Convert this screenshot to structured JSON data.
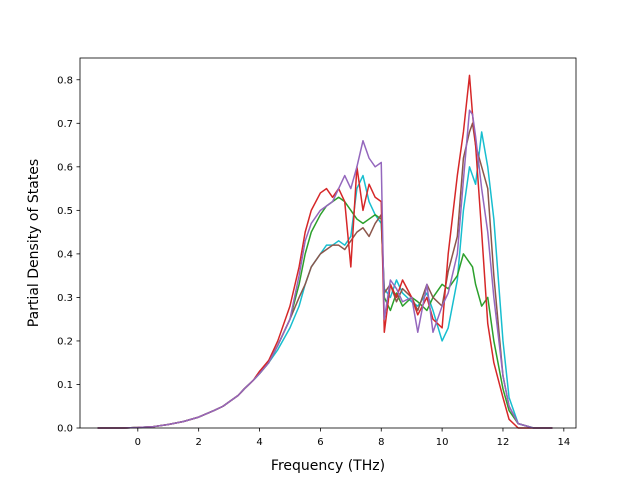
{
  "chart_data": {
    "type": "line",
    "title": "",
    "xlabel": "Frequency (THz)",
    "ylabel": "Partial Density of States",
    "xlim": [
      -1.9,
      14.4
    ],
    "ylim": [
      0.0,
      0.85
    ],
    "x_ticks": [
      0,
      2,
      4,
      6,
      8,
      10,
      12,
      14
    ],
    "x_tick_labels": [
      "0",
      "2",
      "4",
      "6",
      "8",
      "10",
      "12",
      "14"
    ],
    "y_ticks": [
      0.0,
      0.1,
      0.2,
      0.3,
      0.4,
      0.5,
      0.6,
      0.7,
      0.8
    ],
    "y_tick_labels": [
      "0.0",
      "0.1",
      "0.2",
      "0.3",
      "0.4",
      "0.5",
      "0.6",
      "0.7",
      "0.8"
    ],
    "grid": false,
    "legend": false,
    "series": [
      {
        "color": "#17becf",
        "x": [
          -1.3,
          -0.5,
          0.0,
          0.5,
          1.0,
          1.5,
          2.0,
          2.5,
          2.8,
          3.0,
          3.3,
          3.5,
          3.8,
          4.0,
          4.3,
          4.6,
          5.0,
          5.3,
          5.5,
          5.7,
          6.0,
          6.2,
          6.4,
          6.6,
          6.8,
          7.0,
          7.2,
          7.4,
          7.6,
          7.8,
          8.0,
          8.1,
          8.3,
          8.5,
          8.7,
          9.0,
          9.2,
          9.5,
          9.7,
          10.0,
          10.2,
          10.5,
          10.7,
          10.9,
          11.0,
          11.1,
          11.3,
          11.5,
          11.7,
          12.0,
          12.2,
          12.5,
          13.0,
          13.6
        ],
        "y": [
          0.0,
          0.0,
          0.001,
          0.003,
          0.008,
          0.015,
          0.025,
          0.04,
          0.05,
          0.06,
          0.075,
          0.09,
          0.11,
          0.125,
          0.15,
          0.18,
          0.23,
          0.28,
          0.33,
          0.37,
          0.4,
          0.42,
          0.42,
          0.43,
          0.42,
          0.44,
          0.55,
          0.58,
          0.52,
          0.49,
          0.47,
          0.32,
          0.3,
          0.34,
          0.31,
          0.29,
          0.28,
          0.31,
          0.27,
          0.2,
          0.23,
          0.34,
          0.5,
          0.6,
          0.58,
          0.56,
          0.68,
          0.6,
          0.48,
          0.2,
          0.07,
          0.01,
          0.0,
          0.0
        ]
      },
      {
        "color": "#2ca02c",
        "x": [
          -1.3,
          -0.5,
          0.0,
          0.5,
          1.0,
          1.5,
          2.0,
          2.5,
          2.8,
          3.0,
          3.3,
          3.5,
          3.8,
          4.0,
          4.3,
          4.6,
          5.0,
          5.3,
          5.5,
          5.7,
          6.0,
          6.2,
          6.4,
          6.6,
          6.8,
          7.0,
          7.2,
          7.4,
          7.6,
          7.8,
          8.0,
          8.1,
          8.3,
          8.5,
          8.7,
          9.0,
          9.2,
          9.5,
          9.7,
          10.0,
          10.2,
          10.5,
          10.7,
          10.9,
          11.0,
          11.1,
          11.3,
          11.5,
          11.7,
          12.0,
          12.2,
          12.5,
          13.0,
          13.6
        ],
        "y": [
          0.0,
          0.0,
          0.001,
          0.003,
          0.008,
          0.015,
          0.025,
          0.04,
          0.05,
          0.06,
          0.075,
          0.09,
          0.11,
          0.125,
          0.15,
          0.19,
          0.25,
          0.33,
          0.4,
          0.45,
          0.49,
          0.51,
          0.52,
          0.53,
          0.52,
          0.5,
          0.48,
          0.47,
          0.48,
          0.49,
          0.48,
          0.3,
          0.27,
          0.31,
          0.28,
          0.3,
          0.29,
          0.27,
          0.3,
          0.33,
          0.32,
          0.35,
          0.4,
          0.38,
          0.37,
          0.33,
          0.28,
          0.3,
          0.2,
          0.09,
          0.04,
          0.01,
          0.0,
          0.0
        ]
      },
      {
        "color": "#8c564b",
        "x": [
          -1.3,
          -0.5,
          0.0,
          0.5,
          1.0,
          1.5,
          2.0,
          2.5,
          2.8,
          3.0,
          3.3,
          3.5,
          3.8,
          4.0,
          4.3,
          4.6,
          5.0,
          5.3,
          5.5,
          5.7,
          6.0,
          6.2,
          6.4,
          6.6,
          6.8,
          7.0,
          7.2,
          7.4,
          7.6,
          7.8,
          8.0,
          8.1,
          8.3,
          8.5,
          8.7,
          9.0,
          9.2,
          9.5,
          9.7,
          10.0,
          10.2,
          10.5,
          10.7,
          10.9,
          11.0,
          11.1,
          11.3,
          11.5,
          11.7,
          12.0,
          12.2,
          12.5,
          13.0,
          13.6
        ],
        "y": [
          0.0,
          0.0,
          0.001,
          0.003,
          0.008,
          0.015,
          0.025,
          0.04,
          0.05,
          0.06,
          0.075,
          0.09,
          0.11,
          0.13,
          0.15,
          0.19,
          0.25,
          0.3,
          0.33,
          0.37,
          0.4,
          0.41,
          0.42,
          0.42,
          0.41,
          0.43,
          0.45,
          0.46,
          0.44,
          0.47,
          0.49,
          0.31,
          0.33,
          0.29,
          0.32,
          0.3,
          0.27,
          0.33,
          0.3,
          0.28,
          0.36,
          0.44,
          0.62,
          0.68,
          0.7,
          0.65,
          0.6,
          0.55,
          0.35,
          0.12,
          0.05,
          0.01,
          0.0,
          0.0
        ]
      },
      {
        "color": "#d62728",
        "x": [
          -1.3,
          -0.5,
          0.0,
          0.5,
          1.0,
          1.5,
          2.0,
          2.5,
          2.8,
          3.0,
          3.3,
          3.5,
          3.8,
          4.0,
          4.3,
          4.6,
          5.0,
          5.3,
          5.5,
          5.7,
          6.0,
          6.2,
          6.4,
          6.6,
          6.8,
          7.0,
          7.2,
          7.4,
          7.6,
          7.8,
          8.0,
          8.1,
          8.3,
          8.5,
          8.7,
          9.0,
          9.2,
          9.5,
          9.7,
          10.0,
          10.2,
          10.5,
          10.7,
          10.9,
          11.0,
          11.1,
          11.3,
          11.5,
          11.7,
          12.0,
          12.2,
          12.5,
          13.0,
          13.6
        ],
        "y": [
          0.0,
          0.0,
          0.001,
          0.003,
          0.008,
          0.015,
          0.025,
          0.04,
          0.05,
          0.06,
          0.075,
          0.09,
          0.11,
          0.13,
          0.155,
          0.2,
          0.28,
          0.37,
          0.45,
          0.5,
          0.54,
          0.55,
          0.53,
          0.55,
          0.52,
          0.37,
          0.6,
          0.5,
          0.56,
          0.53,
          0.52,
          0.22,
          0.33,
          0.3,
          0.34,
          0.3,
          0.26,
          0.3,
          0.25,
          0.23,
          0.4,
          0.58,
          0.68,
          0.81,
          0.72,
          0.65,
          0.45,
          0.24,
          0.15,
          0.07,
          0.02,
          0.0,
          0.0,
          0.0
        ]
      },
      {
        "color": "#9467bd",
        "x": [
          -1.3,
          -0.5,
          0.0,
          0.5,
          1.0,
          1.5,
          2.0,
          2.5,
          2.8,
          3.0,
          3.3,
          3.5,
          3.8,
          4.0,
          4.3,
          4.6,
          5.0,
          5.3,
          5.5,
          5.7,
          6.0,
          6.2,
          6.4,
          6.6,
          6.8,
          7.0,
          7.2,
          7.4,
          7.6,
          7.8,
          8.0,
          8.1,
          8.3,
          8.5,
          8.7,
          9.0,
          9.2,
          9.5,
          9.7,
          10.0,
          10.2,
          10.5,
          10.7,
          10.9,
          11.0,
          11.1,
          11.3,
          11.5,
          11.7,
          12.0,
          12.2,
          12.5,
          13.0,
          13.6
        ],
        "y": [
          0.0,
          0.0,
          0.001,
          0.003,
          0.008,
          0.015,
          0.025,
          0.04,
          0.05,
          0.06,
          0.075,
          0.09,
          0.11,
          0.125,
          0.15,
          0.19,
          0.25,
          0.35,
          0.43,
          0.47,
          0.5,
          0.51,
          0.52,
          0.55,
          0.58,
          0.55,
          0.6,
          0.66,
          0.62,
          0.6,
          0.61,
          0.25,
          0.34,
          0.32,
          0.29,
          0.3,
          0.22,
          0.33,
          0.22,
          0.28,
          0.31,
          0.4,
          0.57,
          0.73,
          0.72,
          0.67,
          0.55,
          0.45,
          0.3,
          0.12,
          0.05,
          0.01,
          0.0,
          0.0
        ]
      }
    ]
  }
}
